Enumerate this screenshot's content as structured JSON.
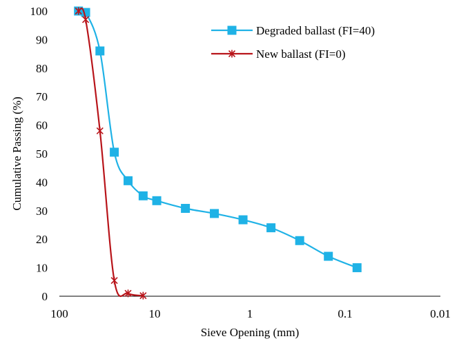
{
  "chart_data": {
    "type": "line",
    "xlabel": "Sieve Opening (mm)",
    "ylabel": "Cumulative Passing (%)",
    "x_scale": "log",
    "x_reversed": true,
    "xlim": [
      100,
      0.01
    ],
    "ylim": [
      0,
      100
    ],
    "x_ticks": [
      {
        "value": 100,
        "label": "100"
      },
      {
        "value": 10,
        "label": "10"
      },
      {
        "value": 1,
        "label": "1"
      },
      {
        "value": 0.1,
        "label": "0.1"
      },
      {
        "value": 0.01,
        "label": "0.01"
      }
    ],
    "y_ticks": [
      {
        "value": 0,
        "label": "0"
      },
      {
        "value": 10,
        "label": "10"
      },
      {
        "value": 20,
        "label": "20"
      },
      {
        "value": 30,
        "label": "30"
      },
      {
        "value": 40,
        "label": "40"
      },
      {
        "value": 50,
        "label": "50"
      },
      {
        "value": 60,
        "label": "60"
      },
      {
        "value": 70,
        "label": "70"
      },
      {
        "value": 80,
        "label": "80"
      },
      {
        "value": 90,
        "label": "90"
      },
      {
        "value": 100,
        "label": "100"
      }
    ],
    "grid": false,
    "legend_position": "top-right",
    "series": [
      {
        "name": "Degraded ballast (FI=40)",
        "color": "#1fb2e6",
        "marker": "square",
        "points": [
          {
            "x": 63,
            "y": 100
          },
          {
            "x": 53,
            "y": 99.5
          },
          {
            "x": 37.5,
            "y": 86
          },
          {
            "x": 26.5,
            "y": 50.5
          },
          {
            "x": 19,
            "y": 40.5
          },
          {
            "x": 13.2,
            "y": 35.2
          },
          {
            "x": 9.5,
            "y": 33.5
          },
          {
            "x": 4.75,
            "y": 30.8
          },
          {
            "x": 2.36,
            "y": 29
          },
          {
            "x": 1.18,
            "y": 26.8
          },
          {
            "x": 0.6,
            "y": 24
          },
          {
            "x": 0.3,
            "y": 19.5
          },
          {
            "x": 0.15,
            "y": 14
          },
          {
            "x": 0.075,
            "y": 10
          }
        ]
      },
      {
        "name": "New ballast (FI=0)",
        "color": "#b8141a",
        "marker": "x",
        "points": [
          {
            "x": 63,
            "y": 100
          },
          {
            "x": 53,
            "y": 97
          },
          {
            "x": 37.5,
            "y": 58
          },
          {
            "x": 26.5,
            "y": 5.5
          },
          {
            "x": 19,
            "y": 1
          },
          {
            "x": 13.2,
            "y": 0.2
          }
        ]
      }
    ]
  }
}
